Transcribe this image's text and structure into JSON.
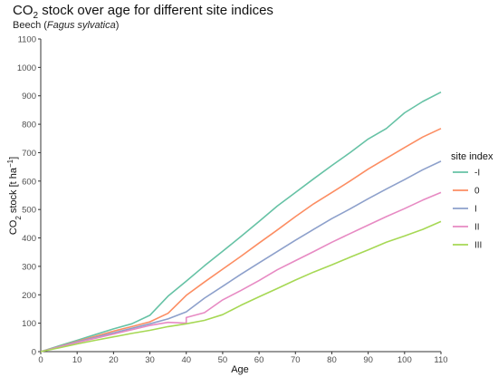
{
  "header": {
    "title_base": "CO",
    "title_sub": "2",
    "title_rest": " stock over age for different site indices",
    "subtitle_prefix": "Beech (",
    "subtitle_italic": "Fagus sylvatica",
    "subtitle_suffix": ")"
  },
  "chart_data": {
    "type": "line",
    "title": "CO2 stock over age for different site indices",
    "subtitle": "Beech (Fagus sylvatica)",
    "xlabel": "Age",
    "ylabel": "CO2 stock [t ha^-1]",
    "ylabel_parts": {
      "a": "CO",
      "sub": "2",
      "b": " stock [t ha",
      "sup": "−1",
      "c": "]"
    },
    "xlim": [
      0,
      110
    ],
    "ylim": [
      0,
      1100
    ],
    "x_ticks": [
      0,
      10,
      20,
      30,
      40,
      50,
      60,
      70,
      80,
      90,
      100,
      110
    ],
    "y_ticks": [
      0,
      100,
      200,
      300,
      400,
      500,
      600,
      700,
      800,
      900,
      1000,
      1100
    ],
    "legend_title": "site index",
    "legend_position": "right",
    "grid": false,
    "series": [
      {
        "name": "-I",
        "color": "#66c2a5",
        "x": [
          0,
          5,
          10,
          15,
          20,
          25,
          30,
          35,
          40,
          45,
          50,
          55,
          60,
          65,
          70,
          75,
          80,
          85,
          90,
          95,
          100,
          105,
          110
        ],
        "y": [
          0,
          20,
          40,
          60,
          80,
          98,
          128,
          195,
          248,
          302,
          353,
          405,
          458,
          512,
          560,
          608,
          655,
          700,
          748,
          785,
          840,
          880,
          913
        ]
      },
      {
        "name": "0",
        "color": "#fc8d62",
        "x": [
          0,
          5,
          10,
          15,
          20,
          25,
          30,
          35,
          40,
          45,
          50,
          55,
          60,
          65,
          70,
          75,
          80,
          85,
          90,
          95,
          100,
          105,
          110
        ],
        "y": [
          0,
          18,
          36,
          54,
          72,
          88,
          105,
          135,
          198,
          245,
          290,
          335,
          382,
          428,
          475,
          520,
          560,
          600,
          642,
          680,
          718,
          755,
          785
        ]
      },
      {
        "name": "I",
        "color": "#8da0cb",
        "x": [
          0,
          5,
          10,
          15,
          20,
          25,
          30,
          35,
          40,
          45,
          50,
          55,
          60,
          65,
          70,
          75,
          80,
          85,
          90,
          95,
          100,
          105,
          110
        ],
        "y": [
          0,
          17,
          34,
          50,
          66,
          82,
          98,
          115,
          140,
          188,
          230,
          272,
          312,
          352,
          392,
          430,
          468,
          502,
          538,
          572,
          605,
          640,
          670
        ]
      },
      {
        "name": "II",
        "color": "#e78ac3",
        "x": [
          0,
          5,
          10,
          15,
          20,
          25,
          30,
          35,
          40,
          40,
          45,
          50,
          55,
          60,
          65,
          70,
          75,
          80,
          85,
          90,
          95,
          100,
          105,
          110
        ],
        "y": [
          0,
          16,
          32,
          47,
          62,
          77,
          92,
          103,
          100,
          120,
          137,
          182,
          215,
          250,
          288,
          320,
          352,
          385,
          415,
          445,
          475,
          503,
          533,
          560
        ]
      },
      {
        "name": "III",
        "color": "#a6d854",
        "x": [
          0,
          5,
          10,
          15,
          20,
          25,
          30,
          35,
          40,
          45,
          50,
          55,
          60,
          65,
          70,
          75,
          80,
          85,
          90,
          95,
          100,
          105,
          110
        ],
        "y": [
          0,
          13,
          27,
          40,
          52,
          64,
          75,
          88,
          98,
          110,
          130,
          163,
          193,
          222,
          252,
          280,
          305,
          332,
          358,
          385,
          407,
          430,
          458
        ]
      }
    ]
  }
}
